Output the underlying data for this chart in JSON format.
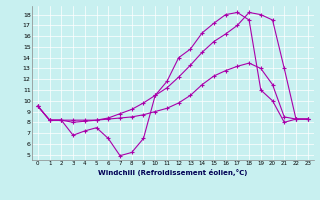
{
  "xlabel": "Windchill (Refroidissement éolien,°C)",
  "bg_color": "#c8f0f0",
  "line_color": "#aa00aa",
  "x_ticks": [
    0,
    1,
    2,
    3,
    4,
    5,
    6,
    7,
    8,
    9,
    10,
    11,
    12,
    13,
    14,
    15,
    16,
    17,
    18,
    19,
    20,
    21,
    22,
    23
  ],
  "y_ticks": [
    5,
    6,
    7,
    8,
    9,
    10,
    11,
    12,
    13,
    14,
    15,
    16,
    17,
    18
  ],
  "ylim": [
    4.5,
    18.8
  ],
  "xlim": [
    -0.5,
    23.5
  ],
  "line1_x": [
    0,
    1,
    2,
    3,
    4,
    5,
    6,
    7,
    8,
    9,
    10,
    11,
    12,
    13,
    14,
    15,
    16,
    17,
    18,
    19,
    20,
    21,
    22,
    23
  ],
  "line1_y": [
    9.5,
    8.2,
    8.2,
    8.2,
    8.2,
    8.2,
    8.3,
    8.4,
    8.5,
    8.7,
    9.0,
    9.3,
    9.8,
    10.5,
    11.5,
    12.3,
    12.8,
    13.2,
    13.5,
    13.0,
    11.5,
    8.5,
    8.3,
    8.3
  ],
  "line2_x": [
    0,
    1,
    2,
    3,
    4,
    5,
    6,
    7,
    8,
    9,
    10,
    11,
    12,
    13,
    14,
    15,
    16,
    17,
    18,
    19,
    20,
    21,
    22,
    23
  ],
  "line2_y": [
    9.5,
    8.2,
    8.2,
    8.0,
    8.1,
    8.2,
    8.4,
    8.8,
    9.2,
    9.8,
    10.5,
    11.2,
    12.2,
    13.3,
    14.5,
    15.5,
    16.2,
    17.0,
    18.2,
    18.0,
    17.5,
    13.0,
    8.3,
    8.3
  ],
  "line3_x": [
    0,
    1,
    2,
    3,
    4,
    5,
    6,
    7,
    8,
    9,
    10,
    11,
    12,
    13,
    14,
    15,
    16,
    17,
    18,
    19,
    20,
    21,
    22,
    23
  ],
  "line3_y": [
    9.5,
    8.2,
    8.2,
    6.8,
    7.2,
    7.5,
    6.5,
    4.9,
    5.2,
    6.5,
    10.5,
    11.8,
    14.0,
    14.8,
    16.3,
    17.2,
    18.0,
    18.2,
    17.5,
    11.0,
    10.0,
    8.0,
    8.3,
    8.3
  ]
}
